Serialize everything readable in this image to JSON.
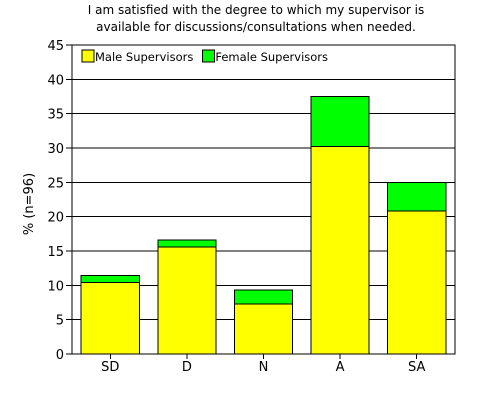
{
  "chart_data": {
    "type": "bar",
    "stacked": true,
    "title": [
      "I am satisfied with the degree to which my supervisor is",
      "available for discussions/consultations when needed."
    ],
    "xlabel": "",
    "ylabel": "% (n=96)",
    "ylim": [
      0,
      45
    ],
    "yticks": [
      0,
      5,
      10,
      15,
      20,
      25,
      30,
      35,
      40,
      45
    ],
    "grid": true,
    "legend_position": "top-left",
    "categories": [
      "SD",
      "D",
      "N",
      "A",
      "SA"
    ],
    "series": [
      {
        "name": "Male Supervisors",
        "color": "#ffff00",
        "values": [
          10.4,
          15.6,
          7.3,
          30.2,
          20.8
        ]
      },
      {
        "name": "Female Supervisors",
        "color": "#00ff00",
        "values": [
          1.0,
          1.0,
          2.0,
          7.3,
          4.2
        ]
      }
    ]
  }
}
